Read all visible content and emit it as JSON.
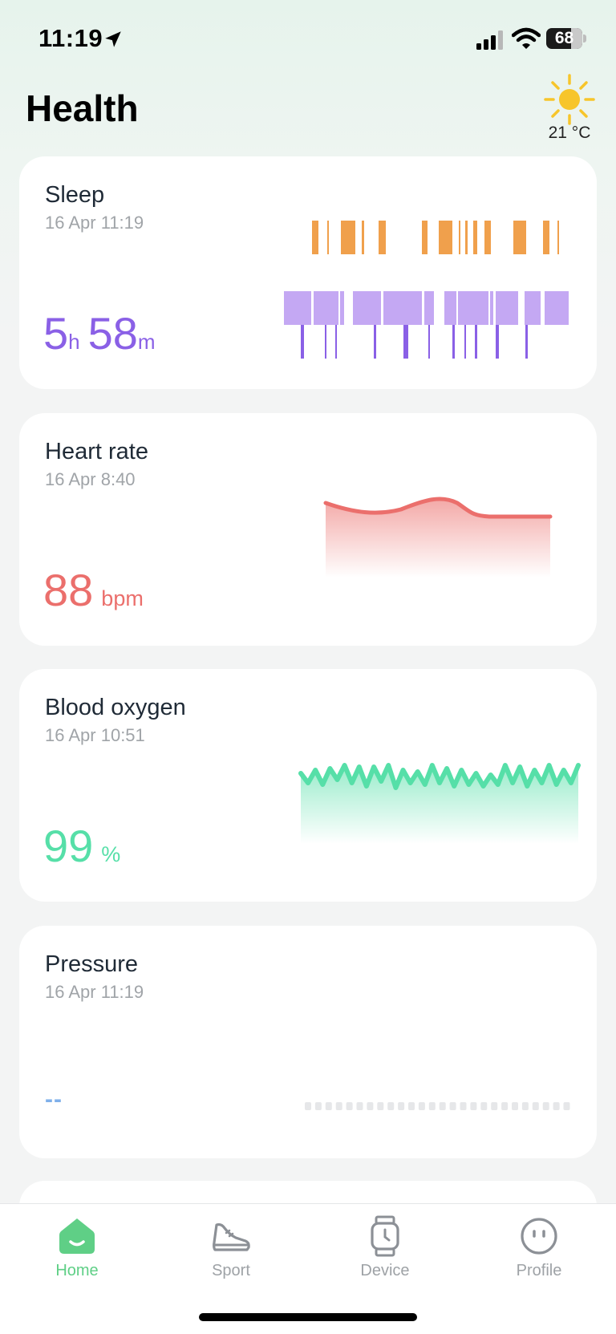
{
  "status": {
    "time": "11:19",
    "battery_level": "68",
    "battery_fraction": 0.68
  },
  "header": {
    "title": "Health",
    "weather_icon": "sun-icon",
    "temperature": "21 °C"
  },
  "colors": {
    "sleep": "#8a60e6",
    "sleep_awake": "#f0a04c",
    "heart_rate": "#eb6f6c",
    "blood_oxygen": "#56dfa8",
    "pressure": "#7fb0ea",
    "active_tab": "#5fcf86"
  },
  "cards": {
    "sleep": {
      "title": "Sleep",
      "date": "16 Apr 11:19",
      "hours": "5",
      "hours_unit": "h",
      "minutes": "58",
      "minutes_unit": "m"
    },
    "heart_rate": {
      "title": "Heart rate",
      "date": "16 Apr 8:40",
      "value": "88",
      "unit": "bpm"
    },
    "blood_oxygen": {
      "title": "Blood oxygen",
      "date": "16 Apr 10:51",
      "value": "99",
      "unit": "%"
    },
    "pressure": {
      "title": "Pressure",
      "date": "16 Apr 11:19",
      "value": "--"
    }
  },
  "tabs": [
    {
      "label": "Home",
      "icon": "home-icon",
      "active": true
    },
    {
      "label": "Sport",
      "icon": "sneaker-icon",
      "active": false
    },
    {
      "label": "Device",
      "icon": "watch-icon",
      "active": false
    },
    {
      "label": "Profile",
      "icon": "face-icon",
      "active": false
    }
  ]
}
